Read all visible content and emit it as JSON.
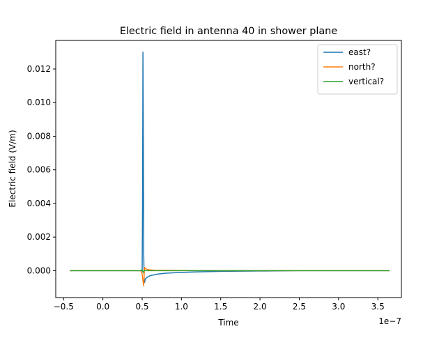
{
  "chart_data": {
    "type": "line",
    "title": "Electric field in antenna 40 in shower plane",
    "xlabel": "Time",
    "ylabel": "Electric field (V/m)",
    "x_offset_label": "1e−7",
    "xlim": [
      -0.6,
      3.8
    ],
    "ylim": [
      -0.0016,
      0.0137
    ],
    "x_ticks": [
      -0.5,
      0.0,
      0.5,
      1.0,
      1.5,
      2.0,
      2.5,
      3.0,
      3.5
    ],
    "x_tick_labels": [
      "−0.5",
      "0.0",
      "0.5",
      "1.0",
      "1.5",
      "2.0",
      "2.5",
      "3.0",
      "3.5"
    ],
    "y_ticks": [
      0.0,
      0.002,
      0.004,
      0.006,
      0.008,
      0.01,
      0.012
    ],
    "y_tick_labels": [
      "0.000",
      "0.002",
      "0.004",
      "0.006",
      "0.008",
      "0.010",
      "0.012"
    ],
    "grid": false,
    "legend_position": "top-right",
    "series": [
      {
        "name": "east?",
        "color": "#1f77b4",
        "x": [
          -0.42,
          0.45,
          0.5,
          0.505,
          0.51,
          0.515,
          0.52,
          0.525,
          0.53,
          0.54,
          0.56,
          0.6,
          0.7,
          0.8,
          1.0,
          1.2,
          1.5,
          2.0,
          2.5,
          3.0,
          3.65
        ],
        "y": [
          0.0,
          0.0,
          0.0,
          0.004,
          0.013,
          0.008,
          0.001,
          -0.0005,
          -0.0007,
          -0.0005,
          -0.0004,
          -0.0003,
          -0.0002,
          -0.00015,
          -0.0001,
          -7e-05,
          -4e-05,
          -2e-05,
          0.0,
          0.0,
          0.0
        ]
      },
      {
        "name": "north?",
        "color": "#ff7f0e",
        "x": [
          -0.42,
          0.48,
          0.5,
          0.51,
          0.52,
          0.525,
          0.53,
          0.54,
          0.55,
          0.58,
          0.65,
          0.8,
          1.0,
          1.5,
          2.0,
          3.0,
          3.65
        ],
        "y": [
          0.0,
          0.0,
          -0.0002,
          -0.0006,
          -0.0009,
          -0.0003,
          0.0002,
          0.00015,
          0.0001,
          6e-05,
          3e-05,
          2e-05,
          1e-05,
          0.0,
          0.0,
          0.0,
          0.0
        ]
      },
      {
        "name": "vertical?",
        "color": "#2ca02c",
        "x": [
          -0.42,
          0.48,
          0.5,
          0.51,
          0.52,
          0.53,
          0.55,
          0.6,
          0.8,
          1.5,
          2.0,
          3.0,
          3.65
        ],
        "y": [
          0.0,
          0.0,
          5e-05,
          -0.0001,
          -5e-05,
          2e-05,
          0.0,
          0.0,
          0.0,
          0.0,
          0.0,
          0.0,
          0.0
        ]
      }
    ]
  }
}
